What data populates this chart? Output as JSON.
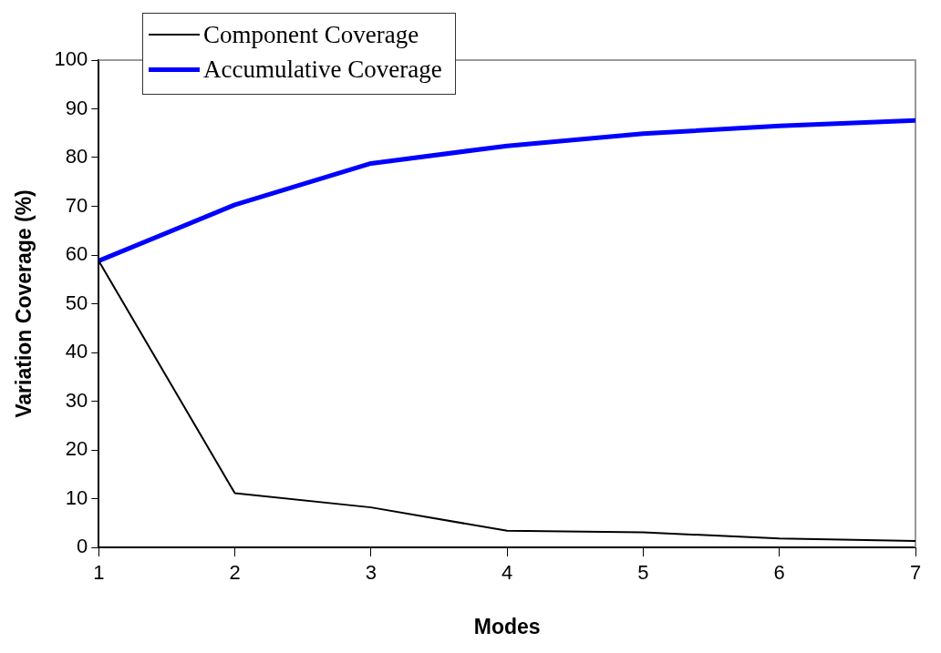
{
  "chart_data": {
    "type": "line",
    "xlabel": "Modes",
    "ylabel": "Variation Coverage (%)",
    "x": [
      1,
      2,
      3,
      4,
      5,
      6,
      7
    ],
    "series": [
      {
        "name": "Component Coverage",
        "color": "#000000",
        "values": [
          58.8,
          11.1,
          8.2,
          3.4,
          3.1,
          1.8,
          1.3
        ]
      },
      {
        "name": "Accumulative Coverage",
        "color": "#0000ff",
        "values": [
          58.8,
          70.3,
          78.8,
          82.4,
          84.9,
          86.5,
          87.6
        ]
      }
    ],
    "xlim": [
      1,
      7
    ],
    "xticks": [
      1,
      2,
      3,
      4,
      5,
      6,
      7
    ],
    "ylim": [
      0,
      100
    ],
    "yticks": [
      0,
      10,
      20,
      30,
      40,
      50,
      60,
      70,
      80,
      90,
      100
    ],
    "grid": false,
    "legend": "top left",
    "marker": "none",
    "line_style": "solid"
  }
}
